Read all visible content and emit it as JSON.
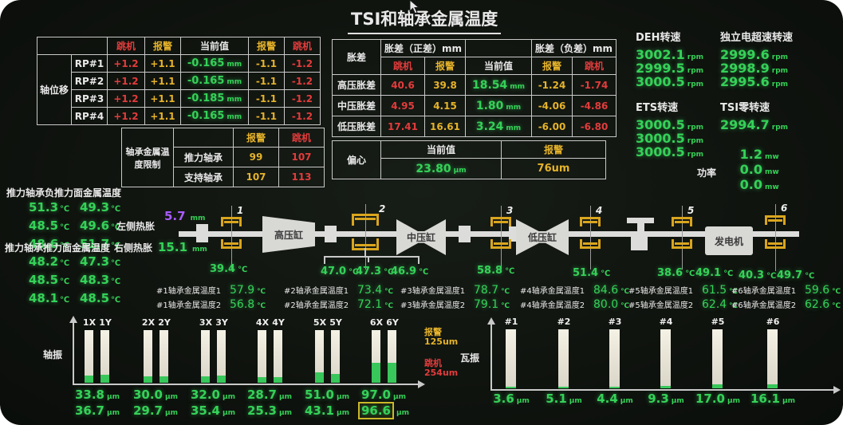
{
  "title": "TSI和轴承金属温度",
  "colors": {
    "green": "#35d158",
    "yellow": "#e6b32a",
    "red": "#e23c3c",
    "purple": "#a95cff",
    "bearing_gold": "#d9a51e"
  },
  "units": {
    "mm": "mm",
    "c": "℃",
    "um": "μm",
    "rpm": "rpm",
    "mw": "mw"
  },
  "axis_displacement": {
    "group_label": "轴位移",
    "headers": [
      "跳机",
      "报警",
      "当前值",
      "报警",
      "跳机"
    ],
    "rows": [
      {
        "label": "RP#1",
        "trip_hi": "+1.2",
        "alarm_hi": "+1.1",
        "current": "-0.165",
        "alarm_lo": "-1.1",
        "trip_lo": "-1.2"
      },
      {
        "label": "RP#2",
        "trip_hi": "+1.2",
        "alarm_hi": "+1.1",
        "current": "-0.165",
        "alarm_lo": "-1.1",
        "trip_lo": "-1.2"
      },
      {
        "label": "RP#3",
        "trip_hi": "+1.2",
        "alarm_hi": "+1.1",
        "current": "-0.185",
        "alarm_lo": "-1.1",
        "trip_lo": "-1.2"
      },
      {
        "label": "RP#4",
        "trip_hi": "+1.2",
        "alarm_hi": "+1.1",
        "current": "-0.165",
        "alarm_lo": "-1.1",
        "trip_lo": "-1.2"
      }
    ]
  },
  "bearing_temp_limit": {
    "group_label": "轴承金属温度限制",
    "alarm_header": "报警",
    "trip_header": "跳机",
    "rows": [
      {
        "label": "推力轴承",
        "alarm": "99",
        "trip": "107"
      },
      {
        "label": "支持轴承",
        "alarm": "107",
        "trip": "113"
      }
    ]
  },
  "expansion": {
    "group_label": "胀差",
    "pos_header": "胀差（正差）mm",
    "neg_header": "胀差（负差）mm",
    "sub_headers": [
      "跳机",
      "报警",
      "当前值",
      "报警",
      "跳机"
    ],
    "rows": [
      {
        "label": "高压胀差",
        "trip_pos": "40.6",
        "alarm_pos": "39.8",
        "current": "18.54",
        "alarm_neg": "-1.24",
        "trip_neg": "-1.74"
      },
      {
        "label": "中压胀差",
        "trip_pos": "4.95",
        "alarm_pos": "4.15",
        "current": "1.80",
        "alarm_neg": "-4.06",
        "trip_neg": "-4.86"
      },
      {
        "label": "低压胀差",
        "trip_pos": "17.41",
        "alarm_pos": "16.61",
        "current": "3.24",
        "alarm_neg": "-6.00",
        "trip_neg": "-6.80"
      }
    ]
  },
  "eccentricity": {
    "group_label": "偏心",
    "current_header": "当前值",
    "alarm_header": "报警",
    "current": "23.80",
    "alarm": "76um"
  },
  "speeds": {
    "deh": {
      "label": "DEH转速",
      "values": [
        "3002.1",
        "2999.5",
        "3000.5"
      ],
      "unit": "rpm"
    },
    "overspeed": {
      "label": "独立电超速转速",
      "values": [
        "2999.6",
        "2998.9",
        "2995.6"
      ],
      "unit": "rpm"
    },
    "ets": {
      "label": "ETS转速",
      "values": [
        "3000.5",
        "3000.5",
        "3000.5"
      ],
      "unit": "rpm"
    },
    "tsi_zero": {
      "label": "TSI零转速",
      "values": [
        "2994.7"
      ],
      "unit": "rpm"
    }
  },
  "power": {
    "label": "功率",
    "values": [
      "1.2",
      "0.0",
      "0.0"
    ],
    "unit": "mw"
  },
  "thrust": {
    "neg_label": "推力轴承负推力面金属温度",
    "pos_label": "推力轴承推力面金属温度",
    "neg_temps": [
      [
        "51.3",
        "49.3"
      ],
      [
        "48.5",
        "49.6"
      ],
      [
        "48.6",
        "51.7"
      ]
    ],
    "pos_temps": [
      [
        "48.2",
        "47.3"
      ],
      [
        "48.5",
        "48.3"
      ],
      [
        "48.1",
        "48.5"
      ]
    ],
    "left_expansion_label": "左侧热胀",
    "left_expansion_value": "5.7",
    "right_expansion_label": "右侧热胀",
    "right_expansion_value": "15.1"
  },
  "machine": {
    "hp_label": "高压缸",
    "ip_label": "中压缸",
    "lp_label": "低压缸",
    "gen_label": "发电机",
    "bearing_numbers": [
      "1",
      "2",
      "3",
      "4",
      "5",
      "6"
    ],
    "bearing_temps": {
      "b1": [
        "39.4"
      ],
      "b2": [
        "47.0",
        "47.3",
        "46.9"
      ],
      "b3": [
        "58.8"
      ],
      "b4": [
        "51.4"
      ],
      "b5": [
        "38.6",
        "49.1"
      ],
      "b6": [
        "40.3",
        "49.7"
      ]
    }
  },
  "bearing_metal": {
    "groups": [
      {
        "label1": "#1轴承金属温度1",
        "value1": "57.9",
        "label2": "#1轴承金属温度2",
        "value2": "56.8"
      },
      {
        "label1": "#2轴承金属温度1",
        "value1": "73.4",
        "label2": "#2轴承金属温度2",
        "value2": "72.1"
      },
      {
        "label1": "#3轴承金属温度1",
        "value1": "78.7",
        "label2": "#3轴承金属温度2",
        "value2": "79.1"
      },
      {
        "label1": "#4轴承金属温度1",
        "value1": "84.6",
        "label2": "#4轴承金属温度2",
        "value2": "80.0"
      },
      {
        "label1": "#5轴承金属温度1",
        "value1": "61.5",
        "label2": "#5轴承金属温度2",
        "value2": "62.4"
      },
      {
        "label1": "#6轴承金属温度1",
        "value1": "59.6",
        "label2": "#6轴承金属温度2",
        "value2": "62.6"
      }
    ]
  },
  "shaft_vib_chart": {
    "type": "bar",
    "label": "轴振",
    "alarm_label": "报警",
    "alarm_value": "125um",
    "trip_label": "跳机",
    "trip_value": "254um",
    "categories": [
      "1X",
      "1Y",
      "2X",
      "2Y",
      "3X",
      "3Y",
      "4X",
      "4Y",
      "5X",
      "5Y",
      "6X",
      "6Y"
    ],
    "values": [
      "33.8",
      "36.7",
      "30.0",
      "29.7",
      "32.0",
      "35.4",
      "28.7",
      "25.3",
      "51.0",
      "43.1",
      "97.0",
      "96.6"
    ],
    "unit": "μm",
    "scale_max": 254,
    "highlighted_value": "96.6"
  },
  "pad_vib_chart": {
    "type": "bar",
    "label": "瓦振",
    "categories": [
      "#1",
      "#2",
      "#3",
      "#4",
      "#5",
      "#6"
    ],
    "values": [
      "3.6",
      "5.1",
      "4.4",
      "9.3",
      "17.0",
      "16.1"
    ],
    "unit": "μm",
    "scale_max": 254
  }
}
